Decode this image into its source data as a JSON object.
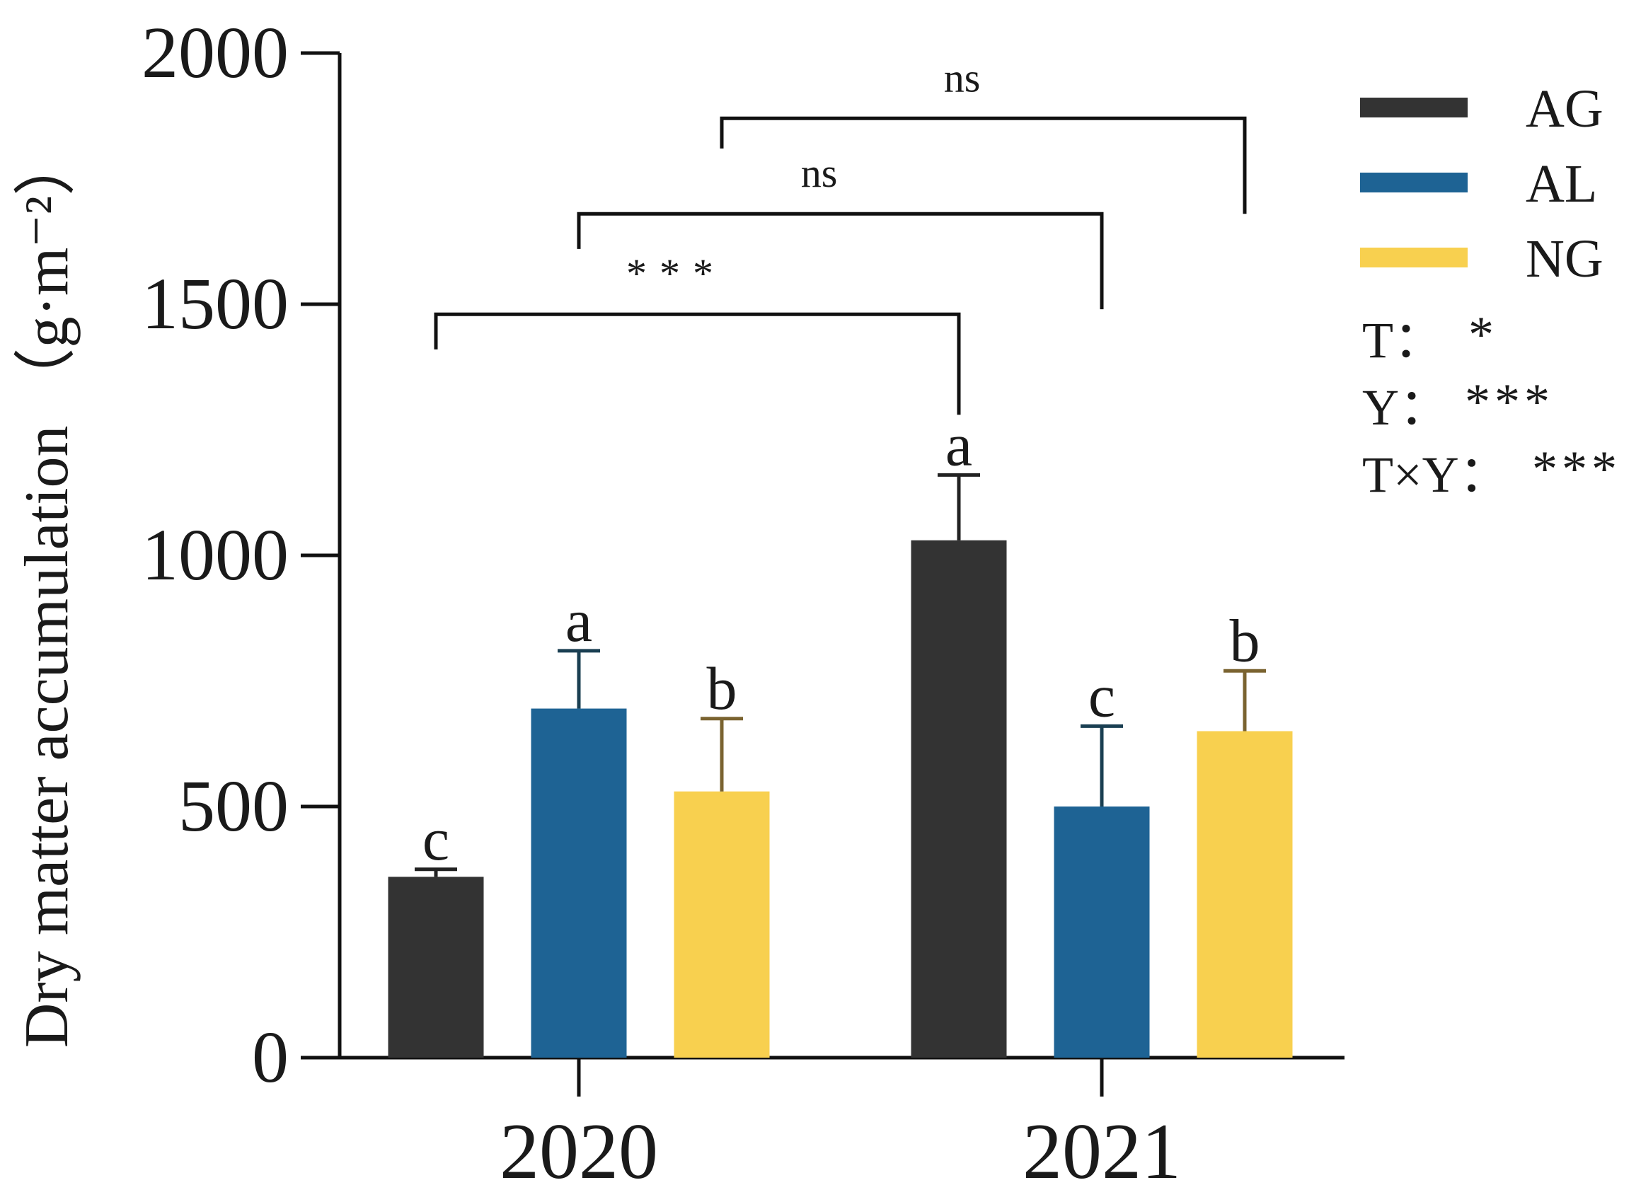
{
  "chart_data": {
    "type": "bar",
    "ylabel": "Dry matter accumulation （g·m⁻²）",
    "ylim": [
      0,
      2000
    ],
    "yticks": [
      0,
      500,
      1000,
      1500,
      2000
    ],
    "categories": [
      "2020",
      "2021"
    ],
    "series": [
      {
        "name": "AG",
        "color": "#333333",
        "errcolor": "#222222",
        "values": [
          360,
          1030
        ],
        "errors": [
          15,
          130
        ],
        "letters": [
          "c",
          "a"
        ]
      },
      {
        "name": "AL",
        "color": "#1e6394",
        "errcolor": "#1a3f52",
        "values": [
          695,
          500
        ],
        "errors": [
          115,
          160
        ],
        "letters": [
          "a",
          "c"
        ]
      },
      {
        "name": "NG",
        "color": "#f8d04f",
        "errcolor": "#7a6330",
        "values": [
          530,
          650
        ],
        "errors": [
          145,
          120
        ],
        "letters": [
          "b",
          "b"
        ]
      }
    ],
    "comparisons": [
      {
        "label": "***",
        "from_series": 0,
        "from_category": 0,
        "to_series": 0,
        "to_category": 1,
        "y": 1480,
        "left_drop_to": 1410,
        "right_drop_to": 1280
      },
      {
        "label": "ns",
        "from_series": 1,
        "from_category": 0,
        "to_series": 1,
        "to_category": 1,
        "y": 1680,
        "left_drop_to": 1610,
        "right_drop_to": 1490
      },
      {
        "label": "ns",
        "from_series": 2,
        "from_category": 0,
        "to_series": 2,
        "to_category": 1,
        "y": 1870,
        "left_drop_to": 1810,
        "right_drop_to": 1680
      }
    ],
    "legend_position": "right",
    "grid": false,
    "stats": [
      {
        "label": "T：",
        "value": "*"
      },
      {
        "label": "Y：",
        "value": "***"
      },
      {
        "label": "T×Y：",
        "value": "***"
      }
    ]
  }
}
